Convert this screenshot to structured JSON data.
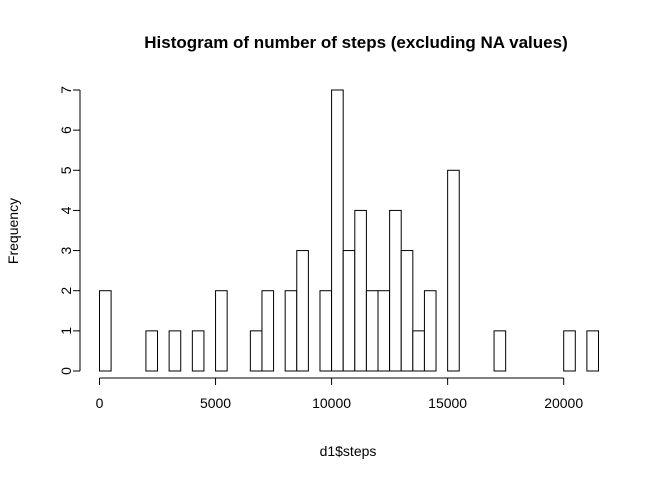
{
  "chart_data": {
    "type": "bar",
    "title": "Histogram of number of steps (excluding NA values)",
    "xlabel": "d1$steps",
    "ylabel": "Frequency",
    "bin_width": 500,
    "x_start": 0,
    "xlim": [
      0,
      21500
    ],
    "ylim": [
      0,
      7
    ],
    "x_ticks": [
      0,
      5000,
      10000,
      15000,
      20000
    ],
    "y_ticks": [
      0,
      1,
      2,
      3,
      4,
      5,
      6,
      7
    ],
    "counts": [
      2,
      0,
      0,
      0,
      1,
      0,
      1,
      0,
      1,
      0,
      2,
      0,
      0,
      1,
      2,
      0,
      2,
      3,
      0,
      2,
      7,
      3,
      4,
      2,
      2,
      4,
      3,
      1,
      2,
      0,
      5,
      0,
      0,
      0,
      1,
      0,
      0,
      0,
      0,
      0,
      1,
      0,
      1
    ],
    "grid": false,
    "legend": "none"
  }
}
